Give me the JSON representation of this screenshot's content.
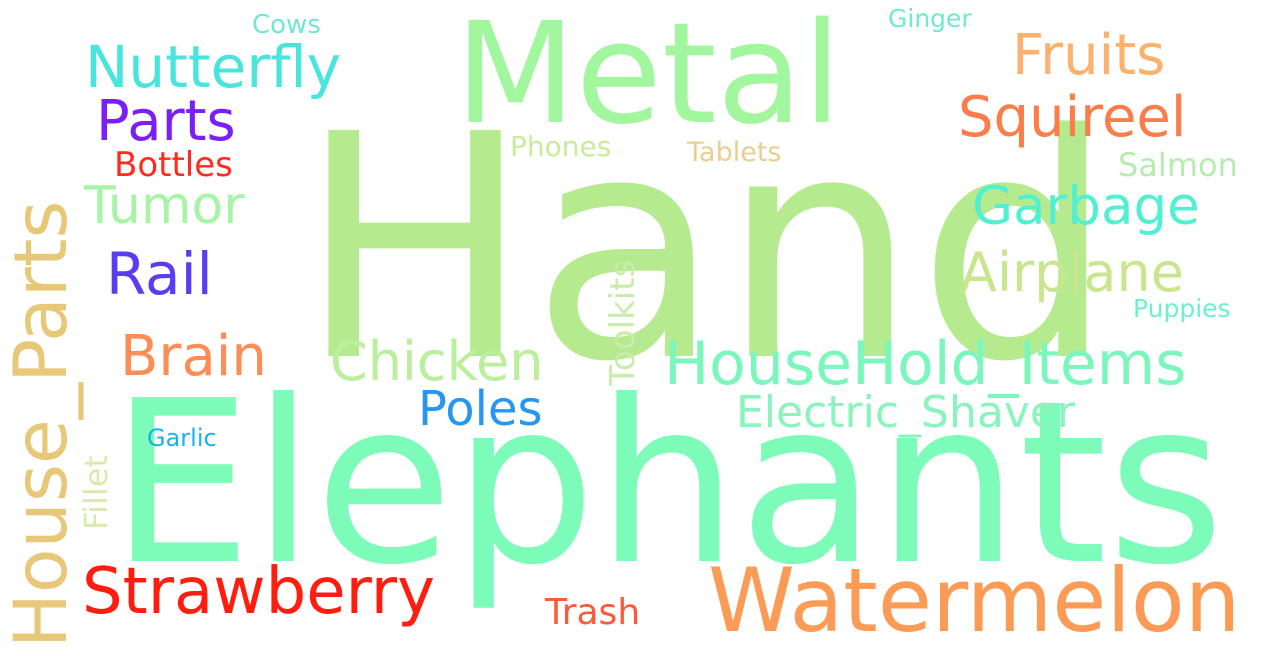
{
  "words": {
    "hand": {
      "text": "Hand",
      "color": "#b6ea8f"
    },
    "elephants": {
      "text": "Elephants",
      "color": "#7dfcb9"
    },
    "metal": {
      "text": "Metal",
      "color": "#a2f79e"
    },
    "house_parts": {
      "text": "House_Parts",
      "color": "#e6c878"
    },
    "watermelon": {
      "text": "Watermelon",
      "color": "#fb9b55"
    },
    "strawberry": {
      "text": "Strawberry",
      "color": "#ff1d10"
    },
    "nutterfly": {
      "text": "Nutterfly",
      "color": "#49e5dd"
    },
    "fruits": {
      "text": "Fruits",
      "color": "#fcb26d"
    },
    "squireel": {
      "text": "Squireel",
      "color": "#fb7d4a"
    },
    "parts": {
      "text": "Parts",
      "color": "#7a1ffa"
    },
    "garbage": {
      "text": "Garbage",
      "color": "#52f0d2"
    },
    "airplane": {
      "text": "Airplane",
      "color": "#c9e68f"
    },
    "household": {
      "text": "HouseHold_Items",
      "color": "#7bf6bd"
    },
    "chicken": {
      "text": "Chicken",
      "color": "#bbee9d"
    },
    "brain": {
      "text": "Brain",
      "color": "#fd8d55"
    },
    "rail": {
      "text": "Rail",
      "color": "#5a3cf5"
    },
    "tumor": {
      "text": "Tumor",
      "color": "#a7f4a6"
    },
    "poles": {
      "text": "Poles",
      "color": "#2596f1"
    },
    "electric": {
      "text": "Electric_Shaver",
      "color": "#89f4bb"
    },
    "shaver": {
      "text": "Shaver",
      "color": "#2dd8e3"
    },
    "bottles": {
      "text": "Bottles",
      "color": "#ff2b1c"
    },
    "salmon": {
      "text": "Salmon",
      "color": "#b6ecb0"
    },
    "trash": {
      "text": "Trash",
      "color": "#fd5a3a"
    },
    "toolkits": {
      "text": "Toolkits",
      "color": "#c9ecab"
    },
    "fillet": {
      "text": "Fillet",
      "color": "#d8ebaa"
    },
    "phones": {
      "text": "Phones",
      "color": "#c7ec9b"
    },
    "tablets": {
      "text": "Tablets",
      "color": "#e9ce8f"
    },
    "puppies": {
      "text": "Puppies",
      "color": "#6df0cd"
    },
    "garlic": {
      "text": "Garlic",
      "color": "#17b5e3"
    },
    "cows": {
      "text": "Cows",
      "color": "#6ee8d4"
    },
    "ginger": {
      "text": "Ginger",
      "color": "#6eeacf"
    }
  }
}
